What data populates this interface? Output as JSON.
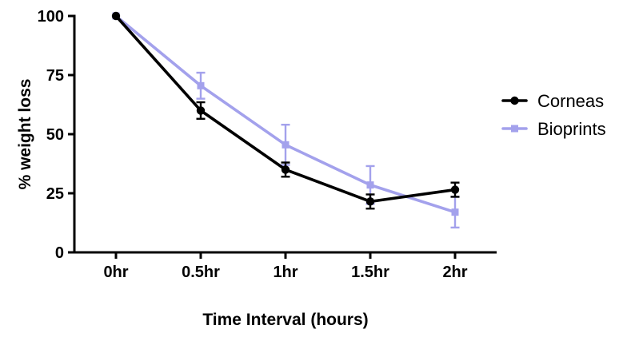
{
  "chart_data": {
    "type": "line",
    "title": "",
    "xlabel": "Time Interval (hours)",
    "ylabel": "% weight loss",
    "x_categories": [
      "0hr",
      "0.5hr",
      "1hr",
      "1.5hr",
      "2hr"
    ],
    "y_ticks": [
      0,
      25,
      50,
      75,
      100
    ],
    "ylim": [
      0,
      100
    ],
    "grid": false,
    "error_bars": true,
    "legend_position": "right-center",
    "series": [
      {
        "name": "Corneas",
        "color": "#000000",
        "marker": "circle",
        "values": [
          100,
          60,
          35,
          21.5,
          26.5
        ],
        "errors": [
          0,
          3.5,
          3,
          3,
          3
        ]
      },
      {
        "name": "Bioprints",
        "color": "#a3a1ec",
        "marker": "square",
        "values": [
          100,
          70.5,
          45.5,
          28.5,
          17
        ],
        "errors": [
          0,
          5.5,
          8.5,
          8,
          6.5
        ]
      }
    ],
    "colors": {
      "background": "#ffffff",
      "axis": "#000000"
    }
  }
}
